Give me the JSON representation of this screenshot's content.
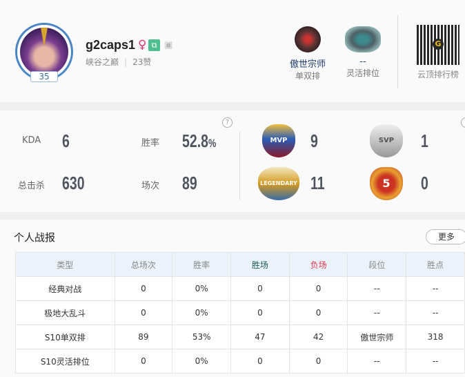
{
  "profile": {
    "name": "g2caps1",
    "gender_icon": "female-icon",
    "level": "35",
    "server": "峡谷之巅",
    "likes": "23赞"
  },
  "ranks": [
    {
      "tier": "傲世宗师",
      "queue": "单双排"
    },
    {
      "tier": "--",
      "queue": "灵活排位"
    }
  ],
  "qr": {
    "label": "云顶排行榜"
  },
  "stats": {
    "kda_label": "KDA",
    "kda": "6",
    "winrate_label": "胜率",
    "winrate": "52.8",
    "winrate_unit": "%",
    "kills_label": "总击杀",
    "kills": "630",
    "games_label": "场次",
    "games": "89",
    "help": "?"
  },
  "honors": [
    {
      "icon": "mvp-badge",
      "label": "MVP",
      "count": "9"
    },
    {
      "icon": "svp-badge",
      "label": "SVP",
      "count": "1"
    },
    {
      "icon": "legendary-badge",
      "label": "LEGENDARY",
      "count": "11"
    },
    {
      "icon": "pentakill-badge",
      "label": "5",
      "count": "0"
    }
  ],
  "record": {
    "title": "个人战报",
    "more": "更多",
    "headers": [
      "类型",
      "总场次",
      "胜率",
      "胜场",
      "负场",
      "段位",
      "胜点"
    ],
    "colors": {
      "win": "#1f5d50",
      "loss": "#e8344a"
    },
    "rows": [
      [
        "经典对战",
        "0",
        "0%",
        "0",
        "0",
        "--",
        "--"
      ],
      [
        "极地大乱斗",
        "0",
        "0%",
        "0",
        "0",
        "--",
        "--"
      ],
      [
        "S10单双排",
        "89",
        "53%",
        "47",
        "42",
        "傲世宗师",
        "318"
      ],
      [
        "S10灵活排位",
        "0",
        "0%",
        "0",
        "0",
        "--",
        "--"
      ]
    ]
  }
}
